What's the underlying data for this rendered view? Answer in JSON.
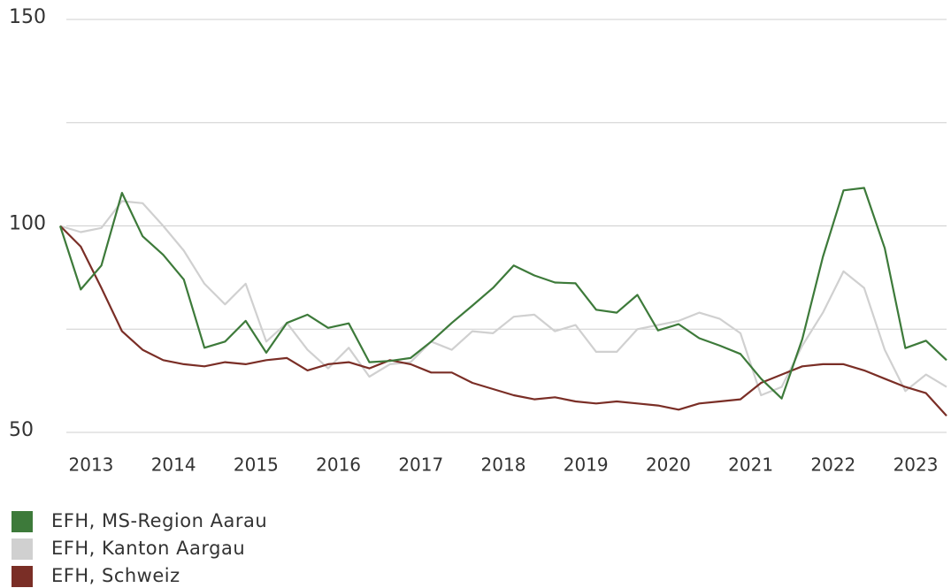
{
  "chart_data": {
    "type": "line",
    "categories": [
      null,
      "2013",
      null,
      null,
      null,
      "2014",
      null,
      null,
      null,
      "2015",
      null,
      null,
      null,
      "2016",
      null,
      null,
      null,
      "2017",
      null,
      null,
      null,
      "2018",
      null,
      null,
      null,
      "2019",
      null,
      null,
      null,
      "2020",
      null,
      null,
      null,
      "2021",
      null,
      null,
      null,
      "2022",
      null,
      null,
      null,
      "2023",
      null,
      null
    ],
    "series": [
      {
        "name": "EFH, MS-Region Aarau",
        "color": "#3d7a3a",
        "values": [
          100,
          84.6,
          90.4,
          108,
          97.5,
          93,
          87,
          70.5,
          72,
          77,
          69.3,
          76.5,
          78.5,
          75.3,
          76.4,
          67,
          67.3,
          68,
          72,
          76.5,
          80.7,
          85,
          90.4,
          88,
          86.3,
          86.1,
          79.7,
          79,
          83.3,
          74.7,
          76.2,
          72.8,
          71,
          69,
          63,
          58.2,
          72.6,
          92.5,
          108.6,
          109.2,
          94.6,
          70.4,
          72.2,
          67.5
        ]
      },
      {
        "name": "EFH, Kanton Aargau",
        "color": "#d0d0d0",
        "values": [
          100,
          98.5,
          99.5,
          106,
          105.5,
          100,
          94,
          86,
          81,
          86,
          72,
          76.5,
          70,
          65.5,
          70.5,
          63.5,
          66.5,
          67,
          72,
          70,
          74.5,
          74,
          78,
          78.5,
          74.5,
          76,
          69.5,
          69.5,
          75,
          76,
          77,
          79,
          77.5,
          74,
          59,
          61,
          71,
          79,
          89,
          85,
          70,
          60,
          64,
          61
        ]
      },
      {
        "name": "EFH, Schweiz",
        "color": "#7a2e26",
        "values": [
          100,
          95,
          85,
          74.5,
          70,
          67.5,
          66.5,
          66,
          67,
          66.5,
          67.5,
          68,
          65,
          66.5,
          67,
          65.5,
          67.5,
          66.5,
          64.5,
          64.5,
          62,
          60.5,
          59,
          58,
          58.5,
          57.5,
          57,
          57.5,
          57,
          56.5,
          55.5,
          57,
          57.5,
          58,
          62,
          64,
          66,
          66.5,
          66.5,
          65,
          63,
          61,
          59.5,
          54
        ]
      }
    ],
    "ylim": [
      50,
      150
    ],
    "yticks": [
      50,
      100,
      150
    ],
    "ygrid": [
      50,
      75,
      100,
      125,
      150
    ],
    "grid": true,
    "legend": "bottom-left"
  }
}
